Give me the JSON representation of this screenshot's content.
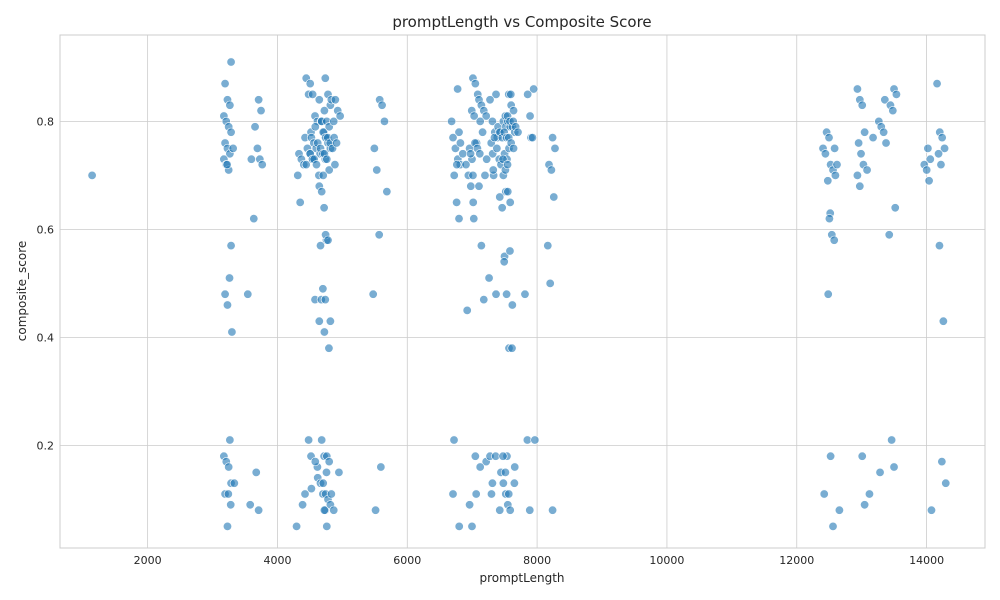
{
  "chart_data": {
    "type": "scatter",
    "title": "promptLength vs Composite Score",
    "xlabel": "promptLength",
    "ylabel": "composite_score",
    "xlim": [
      650,
      14900
    ],
    "ylim": [
      0.01,
      0.96
    ],
    "xticks": [
      2000,
      4000,
      6000,
      8000,
      10000,
      12000,
      14000
    ],
    "yticks": [
      0.2,
      0.4,
      0.6,
      0.8
    ],
    "ytick_labels": [
      "0.2",
      "0.4",
      "0.6",
      "0.8"
    ],
    "grid": true,
    "color": "#1f77b4",
    "clusters": [
      {
        "x": 1200,
        "y": [
          0.7
        ]
      },
      {
        "x": 3230,
        "y": [
          0.91,
          0.87,
          0.84,
          0.83,
          0.81,
          0.8,
          0.79,
          0.78,
          0.76,
          0.75,
          0.74,
          0.73,
          0.72,
          0.71,
          0.57,
          0.48,
          0.46,
          0.21,
          0.18,
          0.17,
          0.16,
          0.13,
          0.11,
          0.05
        ]
      },
      {
        "x": 3280,
        "y": [
          0.75,
          0.72,
          0.51,
          0.41,
          0.13,
          0.11,
          0.09
        ]
      },
      {
        "x": 3580,
        "y": [
          0.73,
          0.62,
          0.48,
          0.09
        ]
      },
      {
        "x": 3710,
        "y": [
          0.84,
          0.82,
          0.79,
          0.75,
          0.73,
          0.72,
          0.15,
          0.08
        ]
      },
      {
        "x": 4350,
        "y": [
          0.74,
          0.73,
          0.72,
          0.7,
          0.65,
          0.09,
          0.05
        ]
      },
      {
        "x": 4480,
        "y": [
          0.88,
          0.85,
          0.78,
          0.77,
          0.75,
          0.74,
          0.73,
          0.72,
          0.21,
          0.18,
          0.11
        ]
      },
      {
        "x": 4560,
        "y": [
          0.87,
          0.85,
          0.81,
          0.8,
          0.77,
          0.76,
          0.75,
          0.74,
          0.73,
          0.47,
          0.16,
          0.12
        ]
      },
      {
        "x": 4620,
        "y": [
          0.8,
          0.79,
          0.76,
          0.74,
          0.73,
          0.72,
          0.7,
          0.47,
          0.17,
          0.14
        ]
      },
      {
        "x": 4700,
        "y": [
          0.88,
          0.84,
          0.8,
          0.78,
          0.77,
          0.75,
          0.74,
          0.73,
          0.68,
          0.67,
          0.64,
          0.58,
          0.57,
          0.49,
          0.47,
          0.43,
          0.21,
          0.18,
          0.15,
          0.13,
          0.11,
          0.08
        ]
      },
      {
        "x": 4760,
        "y": [
          0.85,
          0.83,
          0.82,
          0.8,
          0.79,
          0.78,
          0.77,
          0.76,
          0.75,
          0.74,
          0.73,
          0.71,
          0.7,
          0.59,
          0.58,
          0.43,
          0.41,
          0.18,
          0.17,
          0.13,
          0.11,
          0.1,
          0.09,
          0.08,
          0.05
        ]
      },
      {
        "x": 4830,
        "y": [
          0.84,
          0.8,
          0.77,
          0.76,
          0.75,
          0.72,
          0.38,
          0.11,
          0.08
        ]
      },
      {
        "x": 4910,
        "y": [
          0.84,
          0.82,
          0.81,
          0.77,
          0.76,
          0.15
        ]
      },
      {
        "x": 5530,
        "y": [
          0.75,
          0.71,
          0.59,
          0.48,
          0.08
        ]
      },
      {
        "x": 5630,
        "y": [
          0.84,
          0.83,
          0.8,
          0.67,
          0.16
        ]
      },
      {
        "x": 6720,
        "y": [
          0.86,
          0.8,
          0.21
        ]
      },
      {
        "x": 6760,
        "y": [
          0.78,
          0.77,
          0.75,
          0.73,
          0.72,
          0.7,
          0.65,
          0.62,
          0.11
        ]
      },
      {
        "x": 6800,
        "y": [
          0.76,
          0.74,
          0.72,
          0.05
        ]
      },
      {
        "x": 6960,
        "y": [
          0.75,
          0.73,
          0.72,
          0.7,
          0.68,
          0.65,
          0.45,
          0.09,
          0.05
        ]
      },
      {
        "x": 7030,
        "y": [
          0.88,
          0.87,
          0.85,
          0.82,
          0.81,
          0.76,
          0.74,
          0.7,
          0.18
        ]
      },
      {
        "x": 7080,
        "y": [
          0.76,
          0.75,
          0.74,
          0.62,
          0.11
        ]
      },
      {
        "x": 7160,
        "y": [
          0.84,
          0.83,
          0.82,
          0.81,
          0.8,
          0.78,
          0.7,
          0.68,
          0.57,
          0.47,
          0.17,
          0.16
        ]
      },
      {
        "x": 7260,
        "y": [
          0.74,
          0.73,
          0.51,
          0.11
        ]
      },
      {
        "x": 7330,
        "y": [
          0.85,
          0.84,
          0.8,
          0.78,
          0.77,
          0.76,
          0.7,
          0.48,
          0.18,
          0.13
        ]
      },
      {
        "x": 7380,
        "y": [
          0.79,
          0.78,
          0.77,
          0.75,
          0.73,
          0.71,
          0.18
        ]
      },
      {
        "x": 7480,
        "y": [
          0.8,
          0.79,
          0.78,
          0.77,
          0.74,
          0.73,
          0.72,
          0.7,
          0.67,
          0.66,
          0.64,
          0.55,
          0.18,
          0.15,
          0.13,
          0.11,
          0.08
        ]
      },
      {
        "x": 7530,
        "y": [
          0.81,
          0.8,
          0.79,
          0.78,
          0.77,
          0.75,
          0.73,
          0.71,
          0.67,
          0.65,
          0.54,
          0.48,
          0.38,
          0.18,
          0.15,
          0.09,
          0.08
        ]
      },
      {
        "x": 7600,
        "y": [
          0.85,
          0.83,
          0.82,
          0.81,
          0.8,
          0.79,
          0.78,
          0.77,
          0.76,
          0.75,
          0.72,
          0.56,
          0.46,
          0.16,
          0.11
        ]
      },
      {
        "x": 7650,
        "y": [
          0.85,
          0.8,
          0.79,
          0.78,
          0.38,
          0.13
        ]
      },
      {
        "x": 7850,
        "y": [
          0.77,
          0.48,
          0.21,
          0.08
        ]
      },
      {
        "x": 7910,
        "y": [
          0.86,
          0.85,
          0.81,
          0.77,
          0.21
        ]
      },
      {
        "x": 8220,
        "y": [
          0.77,
          0.75,
          0.72,
          0.71,
          0.66,
          0.57,
          0.5,
          0.08
        ]
      },
      {
        "x": 12460,
        "y": [
          0.78,
          0.77,
          0.75,
          0.74,
          0.69,
          0.63,
          0.11
        ]
      },
      {
        "x": 12540,
        "y": [
          0.72,
          0.71,
          0.7,
          0.62,
          0.59,
          0.58,
          0.48,
          0.18,
          0.05
        ]
      },
      {
        "x": 12620,
        "y": [
          0.75,
          0.72,
          0.08
        ]
      },
      {
        "x": 12990,
        "y": [
          0.86,
          0.84,
          0.83,
          0.78,
          0.76,
          0.74,
          0.72,
          0.7,
          0.68,
          0.18,
          0.09
        ]
      },
      {
        "x": 13120,
        "y": [
          0.77,
          0.71,
          0.11
        ]
      },
      {
        "x": 13320,
        "y": [
          0.84,
          0.8,
          0.79,
          0.78,
          0.76,
          0.15
        ]
      },
      {
        "x": 13480,
        "y": [
          0.86,
          0.85,
          0.83,
          0.82,
          0.64,
          0.59,
          0.21,
          0.16
        ]
      },
      {
        "x": 14020,
        "y": [
          0.75,
          0.73,
          0.72,
          0.71,
          0.69,
          0.08
        ]
      },
      {
        "x": 14180,
        "y": [
          0.87,
          0.57,
          0.17
        ]
      },
      {
        "x": 14240,
        "y": [
          0.78,
          0.77,
          0.75,
          0.74,
          0.72,
          0.43,
          0.13
        ]
      }
    ]
  }
}
